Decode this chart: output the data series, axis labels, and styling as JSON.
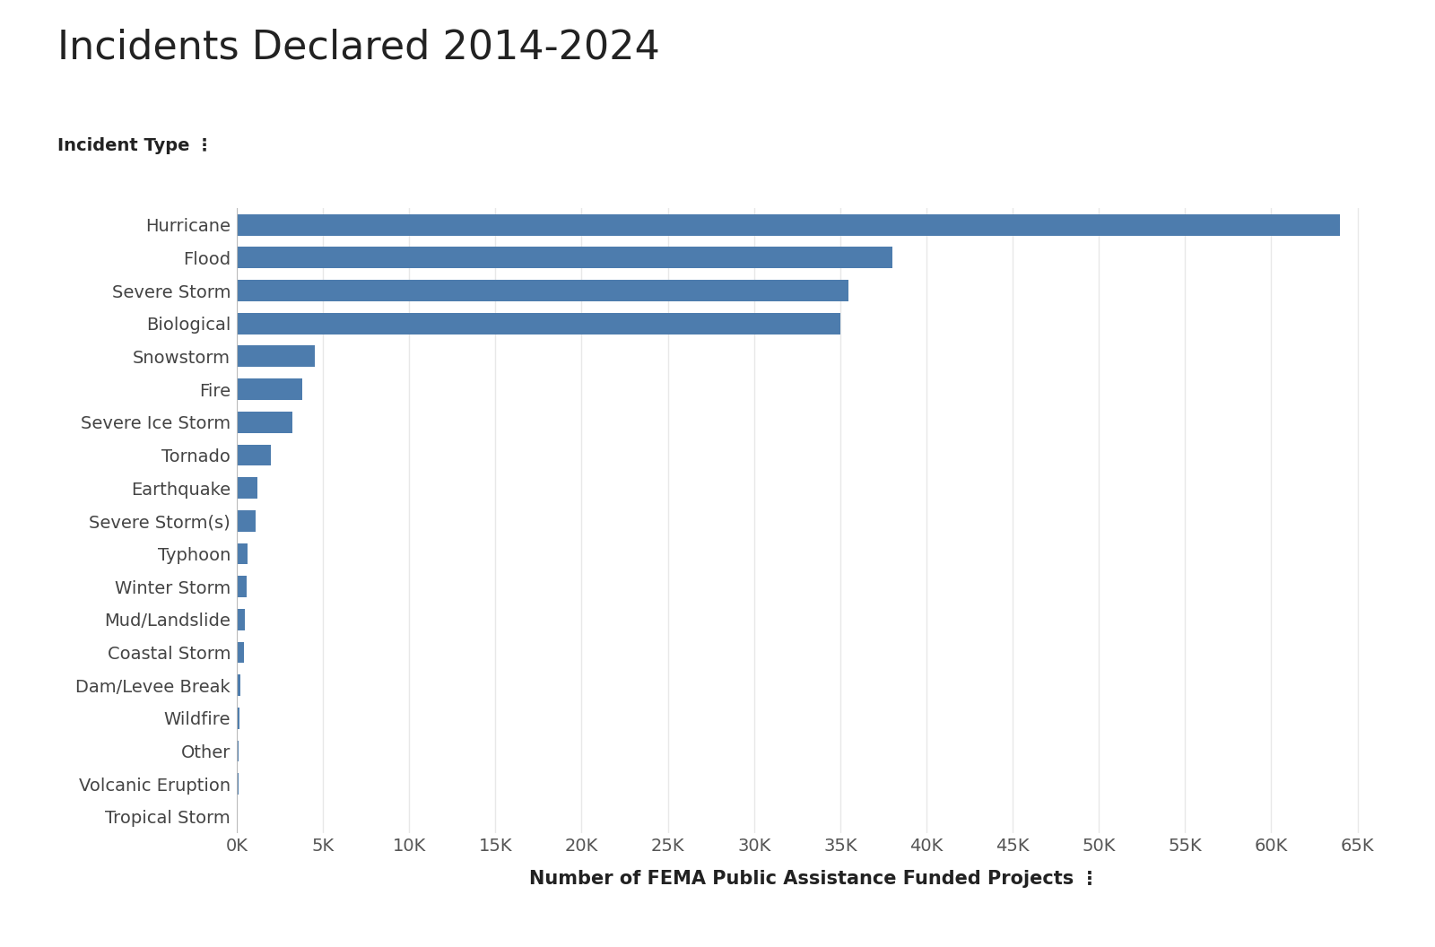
{
  "title": "Incidents Declared 2014-2024",
  "xlabel": "Number of FEMA Public Assistance Funded Projects ⋮",
  "ylabel_label": "Incident Type ⋮",
  "categories": [
    "Hurricane",
    "Flood",
    "Severe Storm",
    "Biological",
    "Snowstorm",
    "Fire",
    "Severe Ice Storm",
    "Tornado",
    "Earthquake",
    "Severe Storm(s)",
    "Typhoon",
    "Winter Storm",
    "Mud/Landslide",
    "Coastal Storm",
    "Dam/Levee Break",
    "Wildfire",
    "Other",
    "Volcanic Eruption",
    "Tropical Storm"
  ],
  "values": [
    64000,
    38000,
    35500,
    35000,
    4500,
    3800,
    3200,
    2000,
    1200,
    1100,
    600,
    550,
    450,
    400,
    200,
    150,
    100,
    80,
    60
  ],
  "bar_color": "#4d7cad",
  "background_color": "#ffffff",
  "title_fontsize": 32,
  "axis_label_fontsize": 15,
  "tick_fontsize": 14,
  "ylabel_fontsize": 14,
  "xlim": [
    0,
    67000
  ],
  "grid_color": "#e8e8e8",
  "bar_height": 0.65
}
